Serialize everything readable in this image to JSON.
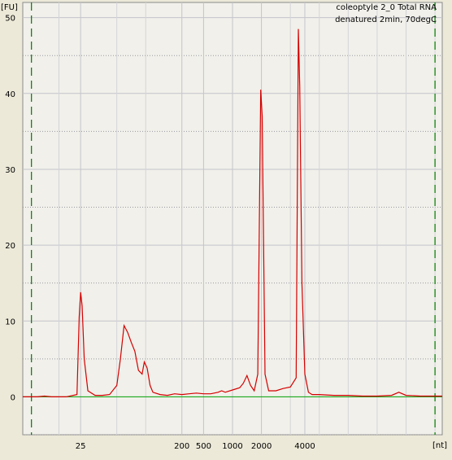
{
  "chart_data": {
    "type": "line",
    "title_lines": [
      "coleoptyle 2_0 Total RNA",
      "denatured 2min, 70degC"
    ],
    "ylabel": "[FU]",
    "xlabel": "[nt]",
    "ylim": [
      -5,
      52
    ],
    "yticks": [
      0,
      10,
      20,
      30,
      40,
      50
    ],
    "xticks": [
      {
        "label": "25",
        "t": 25
      },
      {
        "label": "200",
        "t": 39
      },
      {
        "label": "500",
        "t": 42
      },
      {
        "label": "1000",
        "t": 46
      },
      {
        "label": "2000",
        "t": 50
      },
      {
        "label": "4000",
        "t": 56
      }
    ],
    "xlim": [
      17,
      75
    ],
    "marker_lines_t": [
      18.2,
      74
    ],
    "grid": true,
    "colors": {
      "trace": "#d40000",
      "baseline": "#00a000",
      "marker": "#007a00",
      "grid": "#c4c4cc",
      "plot_bg": "#f1f0ea"
    },
    "series": [
      {
        "points": [
          [
            17,
            0.0
          ],
          [
            18,
            0.0
          ],
          [
            19,
            0.0
          ],
          [
            20,
            0.1
          ],
          [
            21,
            0.0
          ],
          [
            22,
            0.0
          ],
          [
            23,
            0.0
          ],
          [
            24.5,
            0.3
          ],
          [
            24.8,
            10.5
          ],
          [
            25.0,
            13.8
          ],
          [
            25.2,
            12.0
          ],
          [
            25.5,
            5.0
          ],
          [
            26,
            0.8
          ],
          [
            27,
            0.2
          ],
          [
            28,
            0.2
          ],
          [
            29,
            0.3
          ],
          [
            30,
            1.5
          ],
          [
            30.5,
            5.0
          ],
          [
            31.0,
            9.4
          ],
          [
            31.5,
            8.5
          ],
          [
            32,
            7.2
          ],
          [
            32.5,
            6.0
          ],
          [
            33,
            3.5
          ],
          [
            33.5,
            3.0
          ],
          [
            33.8,
            4.6
          ],
          [
            34.2,
            3.8
          ],
          [
            34.6,
            1.5
          ],
          [
            35,
            0.6
          ],
          [
            36,
            0.3
          ],
          [
            37,
            0.2
          ],
          [
            38,
            0.4
          ],
          [
            39,
            0.3
          ],
          [
            40,
            0.4
          ],
          [
            41,
            0.5
          ],
          [
            42,
            0.4
          ],
          [
            43,
            0.4
          ],
          [
            44,
            0.6
          ],
          [
            44.5,
            0.8
          ],
          [
            45,
            0.6
          ],
          [
            46,
            0.9
          ],
          [
            47,
            1.2
          ],
          [
            47.5,
            1.8
          ],
          [
            48.0,
            2.8
          ],
          [
            48.5,
            1.5
          ],
          [
            49.0,
            0.8
          ],
          [
            49.5,
            3.0
          ],
          [
            49.9,
            40.5
          ],
          [
            50.1,
            37.0
          ],
          [
            50.5,
            3.0
          ],
          [
            51,
            0.8
          ],
          [
            52,
            0.8
          ],
          [
            53,
            1.1
          ],
          [
            54,
            1.3
          ],
          [
            54.8,
            2.5
          ],
          [
            55.1,
            48.5
          ],
          [
            55.3,
            41.0
          ],
          [
            55.6,
            15.0
          ],
          [
            56,
            3.0
          ],
          [
            56.5,
            0.6
          ],
          [
            57,
            0.3
          ],
          [
            58,
            0.3
          ],
          [
            60,
            0.2
          ],
          [
            62,
            0.2
          ],
          [
            64,
            0.1
          ],
          [
            66,
            0.1
          ],
          [
            68,
            0.2
          ],
          [
            69,
            0.6
          ],
          [
            70,
            0.2
          ],
          [
            72,
            0.1
          ],
          [
            74,
            0.1
          ],
          [
            75,
            0.1
          ]
        ]
      }
    ]
  }
}
